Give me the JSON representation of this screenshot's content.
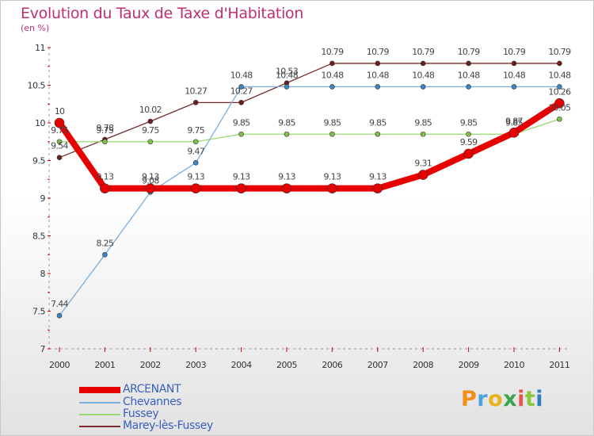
{
  "title": "Evolution du Taux de Taxe d'Habitation",
  "subtitle": "(en %)",
  "logo": {
    "text": "Proxiti",
    "colors": [
      "#f39019",
      "#4aa3df",
      "#e8b21c",
      "#3aa64c",
      "#e8534a",
      "#8cc63f",
      "#2c7fc1"
    ]
  },
  "chart_data": {
    "type": "line",
    "x": [
      "2000",
      "2001",
      "2002",
      "2003",
      "2004",
      "2005",
      "2006",
      "2007",
      "2008",
      "2009",
      "2010",
      "2011"
    ],
    "ylim": [
      7,
      11
    ],
    "yticks": [
      "7",
      "7.5",
      "8",
      "8.5",
      "9",
      "9.5",
      "10",
      "10.5",
      "11"
    ],
    "ytick_values": [
      7,
      7.5,
      8,
      8.5,
      9,
      9.5,
      10,
      10.5,
      11
    ],
    "grid": false,
    "legend": "bottom-left",
    "series": [
      {
        "name": "Marey-lès-Fussey",
        "color": "#7a2a2a",
        "marker": "#6b1f1f",
        "width": 1.3,
        "r": 3,
        "values": [
          9.54,
          9.78,
          10.02,
          10.27,
          10.27,
          10.53,
          10.79,
          10.79,
          10.79,
          10.79,
          10.79,
          10.79
        ],
        "labels": [
          "9.54",
          "9.78",
          "10.02",
          "10.27",
          "10.27",
          "10.53",
          "10.79",
          "10.79",
          "10.79",
          "10.79",
          "10.79",
          "10.79"
        ]
      },
      {
        "name": "Fussey",
        "color": "#9ad86e",
        "marker": "#7dc24a",
        "width": 1.3,
        "r": 3,
        "values": [
          9.75,
          9.75,
          9.75,
          9.75,
          9.85,
          9.85,
          9.85,
          9.85,
          9.85,
          9.85,
          9.85,
          10.05
        ],
        "labels": [
          "9.75",
          "9.75",
          "9.75",
          "9.75",
          "9.85",
          "9.85",
          "9.85",
          "9.85",
          "9.85",
          "9.85",
          "9.85",
          "10.05"
        ]
      },
      {
        "name": "Chevannes",
        "color": "#7aaede",
        "marker": "#3d84c6",
        "width": 1.3,
        "r": 3,
        "values": [
          7.44,
          8.25,
          9.08,
          9.47,
          10.48,
          10.48,
          10.48,
          10.48,
          10.48,
          10.48,
          10.48,
          10.48
        ],
        "labels": [
          "7.44",
          "8.25",
          "9.08",
          "9.47",
          "10.48",
          "10.48",
          "10.48",
          "10.48",
          "10.48",
          "10.48",
          "10.48",
          "10.48"
        ]
      },
      {
        "name": "ARCENANT",
        "color": "#e60000",
        "marker": "#e60000",
        "width": 8,
        "r": 6,
        "values": [
          10,
          9.13,
          9.13,
          9.13,
          9.13,
          9.13,
          9.13,
          9.13,
          9.31,
          9.59,
          9.87,
          10.26
        ],
        "labels": [
          "10",
          "9.13",
          "9.13",
          "9.13",
          "9.13",
          "9.13",
          "9.13",
          "9.13",
          "9.31",
          "9.59",
          "9.87",
          "10.26"
        ]
      }
    ],
    "legend_order": [
      "ARCENANT",
      "Chevannes",
      "Fussey",
      "Marey-lès-Fussey"
    ]
  }
}
